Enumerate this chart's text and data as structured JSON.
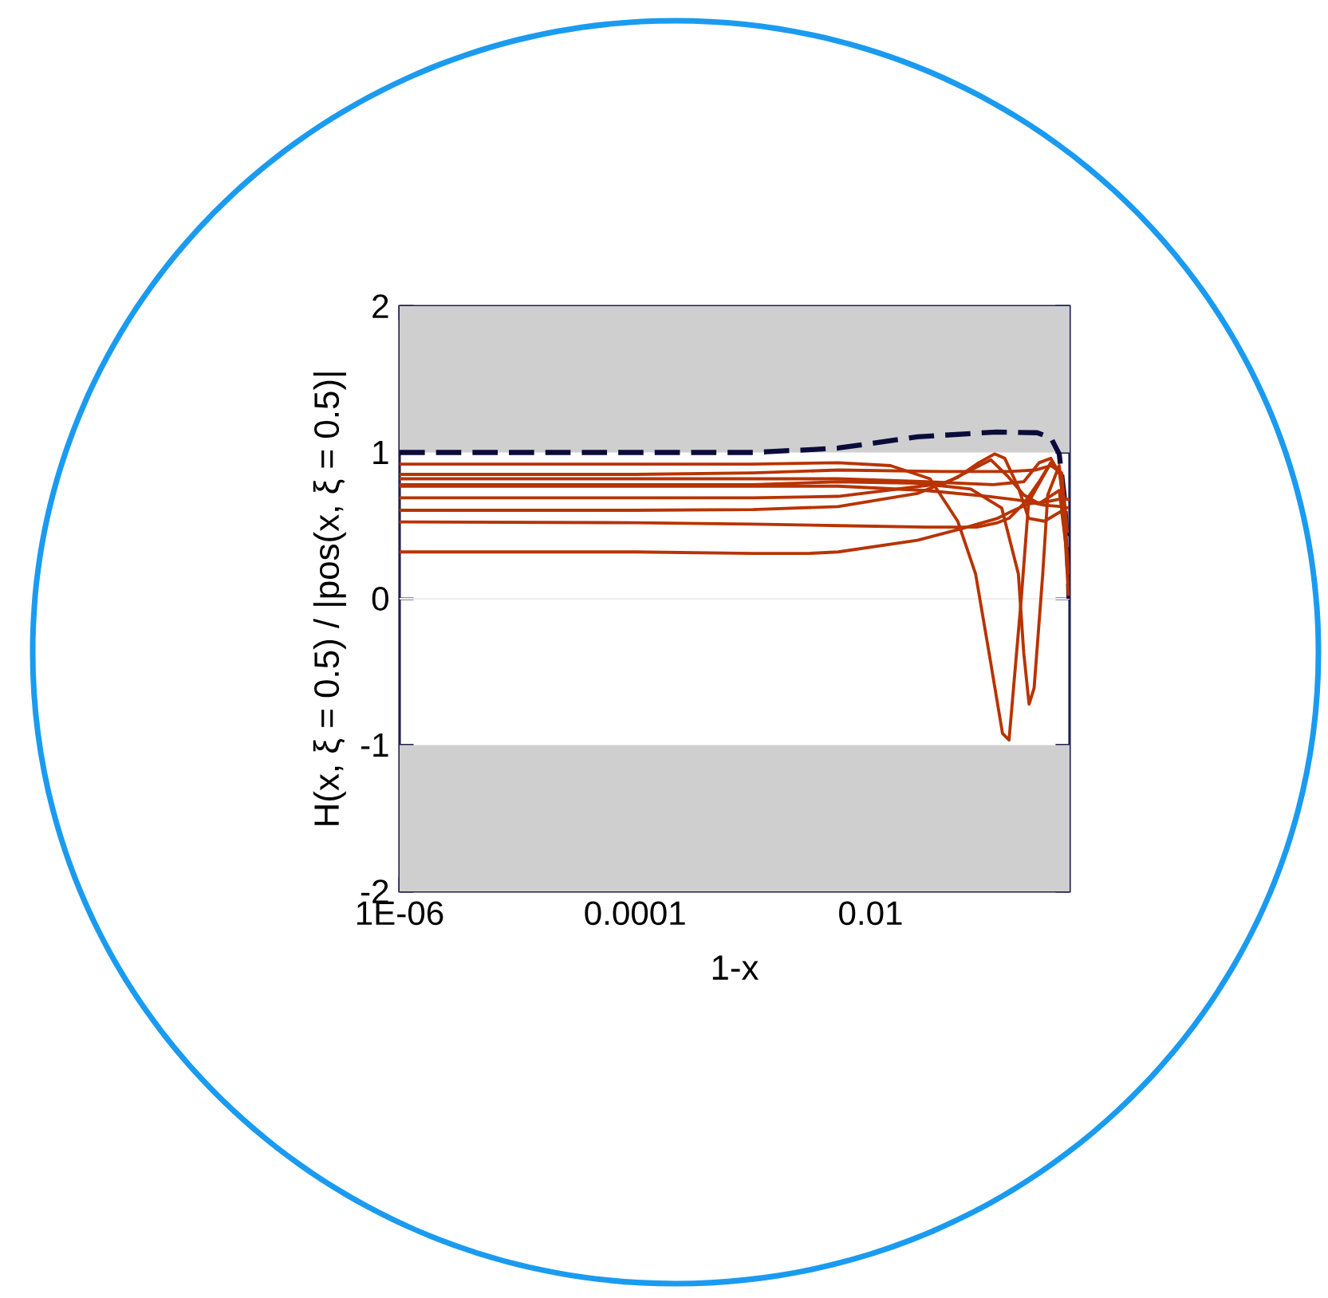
{
  "chart_data": {
    "type": "line",
    "xlabel": "1-x",
    "ylabel": "H(x, ξ = 0.5) / |pos(x, ξ = 0.5)|",
    "log": "x",
    "xlim": [
      1e-06,
      0.49
    ],
    "ylim": [
      -2,
      2
    ],
    "xticks": [
      {
        "value": 1e-06,
        "label": "1E-06"
      },
      {
        "value": 0.0001,
        "label": "0.0001"
      },
      {
        "value": 0.01,
        "label": "0.01"
      }
    ],
    "yticks": [
      -2,
      -1,
      0,
      1,
      2
    ],
    "bands": [
      {
        "axis": "y",
        "from": 1,
        "to": 2,
        "color": "#cfcfcf"
      },
      {
        "axis": "y",
        "from": -2,
        "to": -1,
        "color": "#cfcfcf"
      }
    ],
    "ref_lines": [
      {
        "axis": "y",
        "value": 0,
        "color": "#eeeeee"
      }
    ],
    "series": [
      {
        "color": "#0b0b3b",
        "line_style": "dashed",
        "x": [
          1e-06,
          0.0001,
          0.001,
          0.0013,
          0.0032,
          0.0053,
          0.025,
          0.117,
          0.26,
          0.34,
          0.4,
          0.44,
          0.47,
          0.485
        ],
        "values": [
          1,
          1,
          1,
          1.005,
          1.02,
          1.03,
          1.107,
          1.14,
          1.135,
          1.1,
          0.99,
          0.71,
          0.35,
          0.0
        ]
      },
      {
        "color": "#b83300",
        "x": [
          1e-06,
          0.0001,
          0.001,
          0.0053,
          0.0148,
          0.032,
          0.055,
          0.078,
          0.102,
          0.132,
          0.15,
          0.19,
          0.22,
          0.34,
          0.42,
          0.46
        ],
        "values": [
          0.92,
          0.92,
          0.92,
          0.93,
          0.91,
          0.82,
          0.53,
          0.17,
          -0.38,
          -0.92,
          -0.965,
          -0.01,
          0.66,
          0.93,
          0.84,
          0.38
        ]
      },
      {
        "color": "#b83300",
        "x": [
          1e-06,
          0.0001,
          0.001,
          0.0053,
          0.025,
          0.071,
          0.13,
          0.18,
          0.2,
          0.222,
          0.245,
          0.29,
          0.32,
          0.4,
          0.45,
          0.48
        ],
        "values": [
          0.78,
          0.78,
          0.78,
          0.8,
          0.79,
          0.75,
          0.62,
          0.17,
          -0.37,
          -0.72,
          -0.61,
          0.17,
          0.71,
          0.91,
          0.53,
          0.17
        ]
      },
      {
        "color": "#b83300",
        "x": [
          1e-06,
          0.0001,
          0.001,
          0.0053,
          0.03,
          0.1,
          0.2,
          0.3,
          0.42,
          0.48
        ],
        "values": [
          0.77,
          0.77,
          0.77,
          0.77,
          0.74,
          0.7,
          0.67,
          0.64,
          0.63,
          0.62
        ]
      },
      {
        "color": "#b83300",
        "x": [
          1e-06,
          0.0001,
          0.001,
          0.0053,
          0.025,
          0.055,
          0.083,
          0.113,
          0.138,
          0.18,
          0.22,
          0.3,
          0.42,
          0.46
        ],
        "values": [
          0.605,
          0.605,
          0.61,
          0.63,
          0.72,
          0.83,
          0.93,
          0.99,
          0.96,
          0.76,
          0.55,
          0.53,
          0.6,
          0.34
        ]
      },
      {
        "color": "#b83300",
        "x": [
          1e-06,
          0.0001,
          0.001,
          0.0053,
          0.043,
          0.105,
          0.145,
          0.2,
          0.27,
          0.4,
          0.46
        ],
        "values": [
          0.69,
          0.69,
          0.69,
          0.7,
          0.79,
          0.95,
          0.84,
          0.71,
          0.65,
          0.74,
          0.38
        ]
      },
      {
        "color": "#b83300",
        "x": [
          1e-06,
          0.0001,
          0.001,
          0.0053,
          0.04,
          0.15,
          0.25,
          0.34,
          0.42,
          0.47
        ],
        "values": [
          0.85,
          0.85,
          0.86,
          0.88,
          0.87,
          0.87,
          0.88,
          0.91,
          0.86,
          0.45
        ]
      },
      {
        "color": "#b83300",
        "x": [
          1e-06,
          0.0001,
          0.001,
          0.0053,
          0.03,
          0.11,
          0.2,
          0.27,
          0.34,
          0.42,
          0.48
        ],
        "values": [
          0.82,
          0.82,
          0.82,
          0.82,
          0.8,
          0.78,
          0.8,
          0.93,
          0.96,
          0.83,
          0.02
        ]
      },
      {
        "color": "#b83300",
        "x": [
          1e-06,
          0.0001,
          0.001,
          0.0053,
          0.03,
          0.08,
          0.12,
          0.15,
          0.2,
          0.27,
          0.34,
          0.4,
          0.45
        ],
        "values": [
          0.525,
          0.52,
          0.51,
          0.5,
          0.49,
          0.49,
          0.52,
          0.55,
          0.65,
          0.8,
          0.93,
          0.88,
          0.55
        ]
      },
      {
        "color": "#b83300",
        "x": [
          1e-06,
          0.0001,
          0.001,
          0.003,
          0.0053,
          0.025,
          0.06,
          0.12,
          0.16,
          0.22,
          0.3,
          0.4,
          0.49
        ],
        "values": [
          0.32,
          0.32,
          0.31,
          0.31,
          0.32,
          0.4,
          0.48,
          0.55,
          0.6,
          0.65,
          0.66,
          0.68,
          0.68
        ]
      }
    ]
  }
}
